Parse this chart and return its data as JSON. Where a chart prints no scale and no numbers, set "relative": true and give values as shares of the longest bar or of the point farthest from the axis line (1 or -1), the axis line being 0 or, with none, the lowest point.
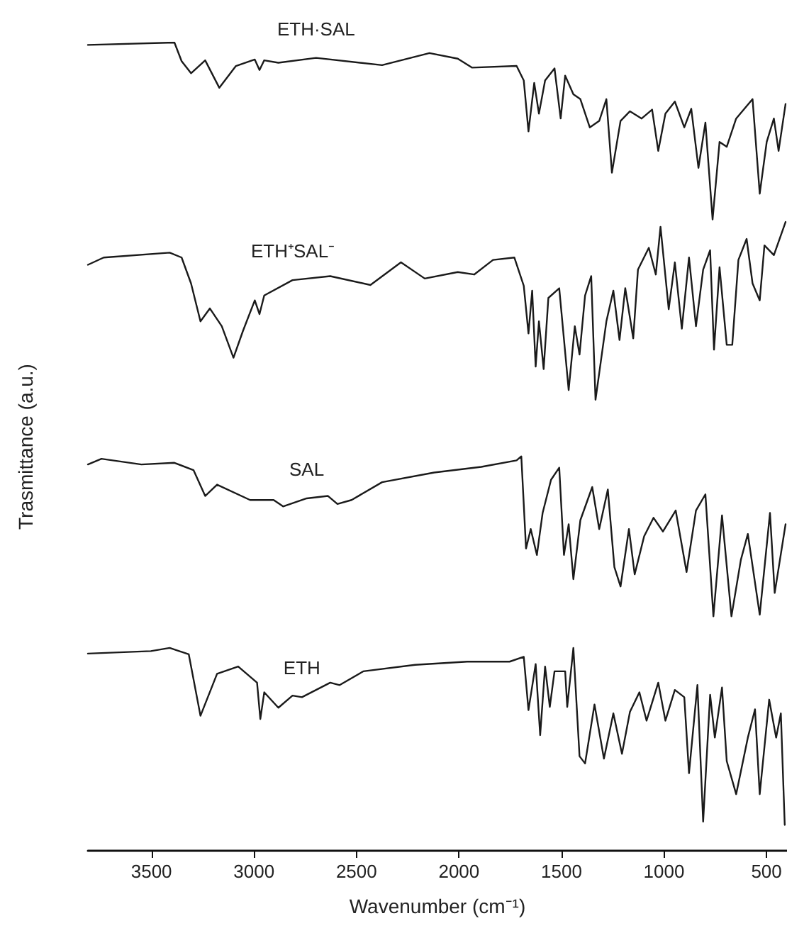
{
  "chart_data": {
    "type": "line",
    "xlabel": "Wavenumber (cm⁻¹)",
    "ylabel": "Trasmittance (a.u.)",
    "relative": true,
    "xlim": [
      3810,
      400
    ],
    "xticks": [
      3500,
      3000,
      2500,
      2000,
      1500,
      1000,
      500
    ],
    "grid": false,
    "legend": false,
    "series": [
      {
        "name": "ETH·SAL",
        "color": "#1a1a1a",
        "x": [
          3810,
          3388,
          3353,
          3307,
          3238,
          3169,
          3088,
          2996,
          2973,
          2950,
          2881,
          2697,
          2375,
          2144,
          2006,
          1937,
          1719,
          1684,
          1661,
          1633,
          1610,
          1580,
          1534,
          1504,
          1482,
          1442,
          1408,
          1362,
          1316,
          1281,
          1254,
          1212,
          1166,
          1109,
          1058,
          1028,
          993,
          947,
          901,
          867,
          832,
          798,
          763,
          729,
          694,
          648,
          568,
          533,
          499,
          464,
          441,
          407
        ],
        "values": [
          0.997,
          1,
          0.977,
          0.962,
          0.978,
          0.944,
          0.971,
          0.979,
          0.966,
          0.978,
          0.975,
          0.981,
          0.972,
          0.987,
          0.98,
          0.969,
          0.971,
          0.953,
          0.89,
          0.95,
          0.912,
          0.953,
          0.968,
          0.906,
          0.959,
          0.936,
          0.93,
          0.895,
          0.903,
          0.93,
          0.839,
          0.903,
          0.915,
          0.906,
          0.917,
          0.866,
          0.912,
          0.927,
          0.895,
          0.918,
          0.845,
          0.901,
          0.781,
          0.877,
          0.871,
          0.906,
          0.93,
          0.813,
          0.877,
          0.906,
          0.866,
          0.924
        ]
      },
      {
        "name": "ETH⁺SAL⁻",
        "color": "#1a1a1a",
        "x": [
          3810,
          3733,
          3411,
          3353,
          3307,
          3261,
          3215,
          3157,
          3100,
          3054,
          2996,
          2973,
          2950,
          2812,
          2628,
          2432,
          2283,
          2167,
          2006,
          1926,
          1834,
          1730,
          1684,
          1661,
          1643,
          1626,
          1610,
          1587,
          1564,
          1511,
          1465,
          1435,
          1412,
          1385,
          1355,
          1334,
          1281,
          1247,
          1217,
          1189,
          1150,
          1127,
          1074,
          1040,
          1017,
          977,
          947,
          913,
          878,
          844,
          809,
          775,
          756,
          729,
          694,
          667,
          637,
          597,
          568,
          533,
          510,
          464,
          407
        ],
        "values": [
          0.725,
          0.734,
          0.74,
          0.734,
          0.702,
          0.655,
          0.671,
          0.649,
          0.61,
          0.643,
          0.681,
          0.664,
          0.687,
          0.706,
          0.711,
          0.7,
          0.728,
          0.708,
          0.716,
          0.713,
          0.731,
          0.734,
          0.699,
          0.64,
          0.693,
          0.599,
          0.655,
          0.596,
          0.684,
          0.696,
          0.57,
          0.649,
          0.614,
          0.687,
          0.711,
          0.558,
          0.655,
          0.693,
          0.632,
          0.696,
          0.634,
          0.719,
          0.746,
          0.713,
          0.772,
          0.67,
          0.728,
          0.646,
          0.734,
          0.649,
          0.719,
          0.743,
          0.62,
          0.722,
          0.626,
          0.626,
          0.731,
          0.757,
          0.702,
          0.681,
          0.749,
          0.737,
          0.778
        ]
      },
      {
        "name": "SAL",
        "color": "#1a1a1a",
        "x": [
          3810,
          3744,
          3549,
          3388,
          3295,
          3238,
          3180,
          3019,
          2904,
          2858,
          2743,
          2639,
          2593,
          2524,
          2375,
          2121,
          1891,
          1719,
          1696,
          1673,
          1650,
          1620,
          1592,
          1551,
          1511,
          1488,
          1465,
          1442,
          1408,
          1350,
          1316,
          1274,
          1242,
          1212,
          1171,
          1143,
          1097,
          1051,
          1005,
          943,
          890,
          844,
          798,
          759,
          717,
          671,
          625,
          591,
          533,
          483,
          460,
          407
        ],
        "values": [
          0.478,
          0.485,
          0.478,
          0.48,
          0.471,
          0.439,
          0.453,
          0.434,
          0.434,
          0.426,
          0.436,
          0.439,
          0.429,
          0.434,
          0.456,
          0.468,
          0.475,
          0.483,
          0.488,
          0.374,
          0.398,
          0.366,
          0.418,
          0.459,
          0.474,
          0.366,
          0.404,
          0.336,
          0.409,
          0.45,
          0.398,
          0.447,
          0.351,
          0.327,
          0.398,
          0.342,
          0.389,
          0.412,
          0.395,
          0.421,
          0.345,
          0.421,
          0.441,
          0.29,
          0.415,
          0.29,
          0.36,
          0.392,
          0.292,
          0.418,
          0.319,
          0.404
        ]
      },
      {
        "name": "ETH",
        "color": "#1a1a1a",
        "x": [
          3810,
          3503,
          3411,
          3318,
          3261,
          3180,
          3077,
          2985,
          2969,
          2950,
          2881,
          2812,
          2766,
          2628,
          2582,
          2467,
          2214,
          1960,
          1753,
          1684,
          1661,
          1626,
          1604,
          1580,
          1557,
          1534,
          1482,
          1472,
          1442,
          1412,
          1385,
          1339,
          1293,
          1247,
          1205,
          1166,
          1120,
          1085,
          1028,
          993,
          947,
          901,
          878,
          837,
          809,
          775,
          752,
          717,
          694,
          648,
          591,
          556,
          533,
          487,
          453,
          430,
          411
        ],
        "values": [
          0.244,
          0.247,
          0.251,
          0.243,
          0.167,
          0.219,
          0.228,
          0.208,
          0.163,
          0.196,
          0.177,
          0.192,
          0.19,
          0.208,
          0.205,
          0.222,
          0.23,
          0.234,
          0.234,
          0.24,
          0.174,
          0.231,
          0.143,
          0.228,
          0.178,
          0.222,
          0.222,
          0.178,
          0.251,
          0.117,
          0.108,
          0.181,
          0.114,
          0.17,
          0.12,
          0.172,
          0.196,
          0.161,
          0.208,
          0.161,
          0.199,
          0.19,
          0.096,
          0.205,
          0.036,
          0.193,
          0.14,
          0.202,
          0.111,
          0.07,
          0.14,
          0.175,
          0.07,
          0.187,
          0.14,
          0.17,
          0.032
        ]
      }
    ]
  }
}
